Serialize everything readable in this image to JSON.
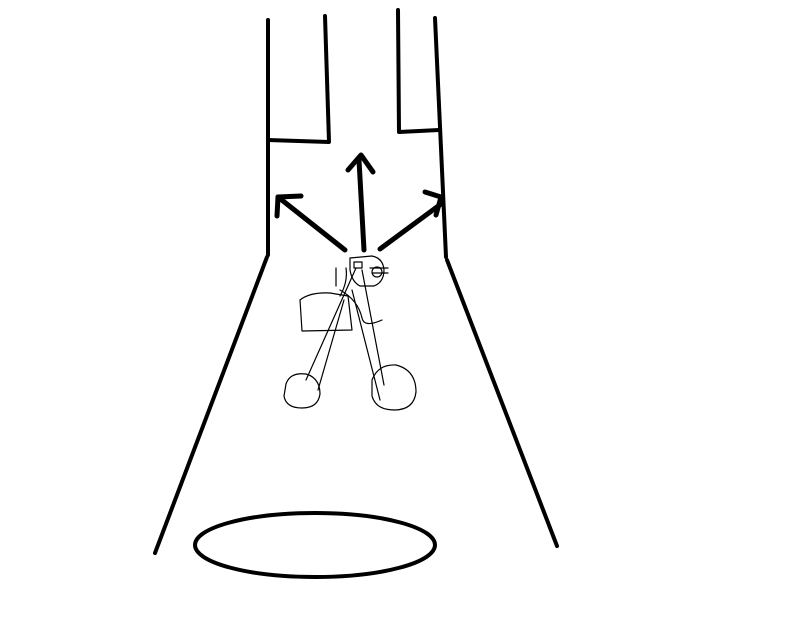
{
  "drawing": {
    "background": "#ffffff",
    "stroke_color": "#000000",
    "elements": [
      "channel-left-wall-icon",
      "channel-right-wall-icon",
      "inner-left-baffle-icon",
      "inner-right-baffle-icon",
      "funnel-left-wall-icon",
      "funnel-right-wall-icon",
      "up-arrow-icon",
      "up-left-arrow-icon",
      "up-right-arrow-icon",
      "stick-figure-cyclist-icon",
      "spotlight-ellipse-icon"
    ]
  }
}
